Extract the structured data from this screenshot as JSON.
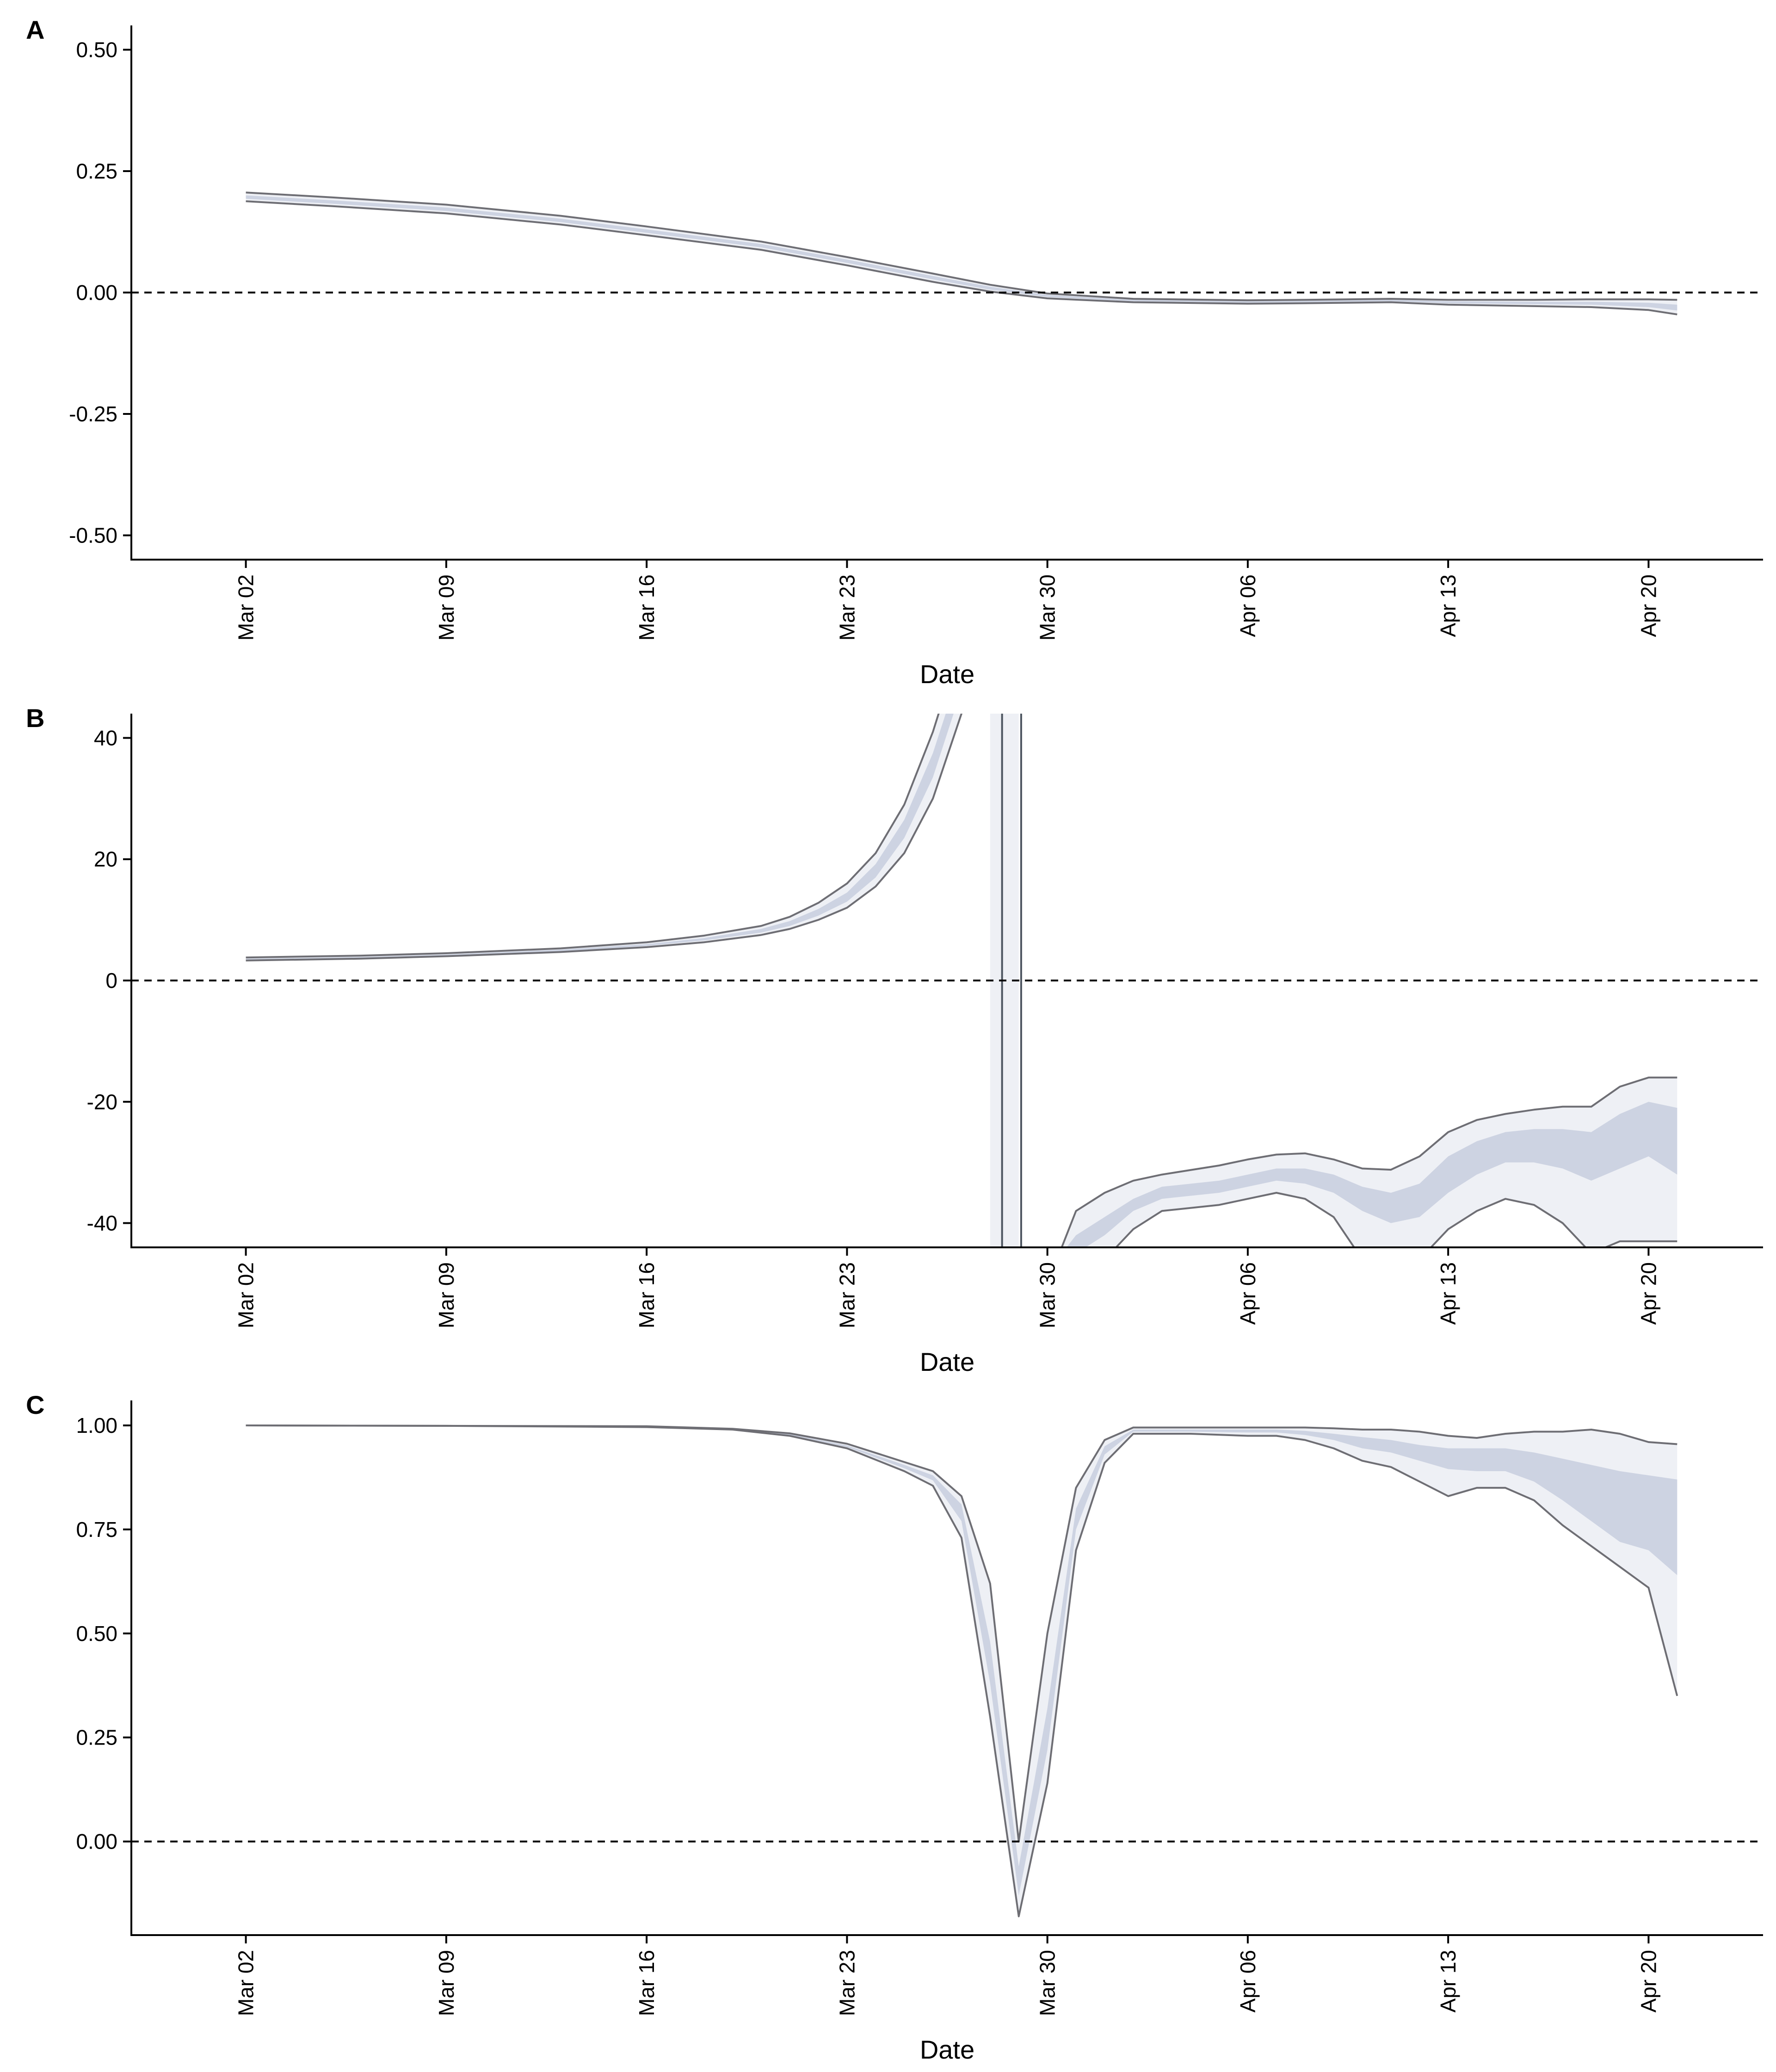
{
  "colors": {
    "band_outer": "#eef0f5",
    "band_inner": "#cdd3e2",
    "outline": "#6e6e74",
    "median": "#4d5560",
    "axis": "#000000"
  },
  "chart_data": [
    {
      "panel_label": "A",
      "type": "area",
      "xlabel": "Date",
      "ylabel": "",
      "xlim": [
        "2020-02-27",
        "2020-04-24"
      ],
      "ylim": [
        -0.55,
        0.55
      ],
      "xticks": [
        "2020-03-02",
        "2020-03-09",
        "2020-03-16",
        "2020-03-23",
        "2020-03-30",
        "2020-04-06",
        "2020-04-13",
        "2020-04-20"
      ],
      "xtick_labels": [
        "Mar 02",
        "Mar 09",
        "Mar 16",
        "Mar 23",
        "Mar 30",
        "Apr 06",
        "Apr 13",
        "Apr 20"
      ],
      "yticks": [
        -0.5,
        -0.25,
        0,
        0.25,
        0.5
      ],
      "ytick_labels": [
        "-0.50",
        "-0.25",
        "0.00",
        "0.25",
        "0.50"
      ],
      "reference_line": 0,
      "series": [
        {
          "x": [
            "2020-03-02",
            "2020-03-05",
            "2020-03-09",
            "2020-03-13",
            "2020-03-16",
            "2020-03-20",
            "2020-03-23",
            "2020-03-26",
            "2020-03-28",
            "2020-03-30",
            "2020-04-02",
            "2020-04-06",
            "2020-04-08",
            "2020-04-11",
            "2020-04-13",
            "2020-04-16",
            "2020-04-18",
            "2020-04-20",
            "2020-04-21"
          ],
          "lower": [
            0.188,
            0.178,
            0.163,
            0.14,
            0.118,
            0.088,
            0.056,
            0.022,
            0.002,
            -0.012,
            -0.02,
            -0.023,
            -0.022,
            -0.02,
            -0.025,
            -0.028,
            -0.03,
            -0.036,
            -0.045
          ],
          "lower_mid": [
            0.193,
            0.183,
            0.168,
            0.145,
            0.123,
            0.093,
            0.061,
            0.027,
            0.006,
            -0.009,
            -0.018,
            -0.021,
            -0.02,
            -0.018,
            -0.022,
            -0.024,
            -0.025,
            -0.03,
            -0.037
          ],
          "upper_mid": [
            0.2,
            0.19,
            0.175,
            0.152,
            0.13,
            0.1,
            0.068,
            0.034,
            0.012,
            -0.005,
            -0.015,
            -0.018,
            -0.017,
            -0.015,
            -0.018,
            -0.019,
            -0.019,
            -0.021,
            -0.025
          ],
          "upper": [
            0.206,
            0.196,
            0.181,
            0.158,
            0.136,
            0.105,
            0.073,
            0.039,
            0.016,
            -0.002,
            -0.013,
            -0.016,
            -0.015,
            -0.013,
            -0.015,
            -0.015,
            -0.014,
            -0.014,
            -0.015
          ]
        }
      ]
    },
    {
      "panel_label": "B",
      "type": "area",
      "xlabel": "Date",
      "ylabel": "",
      "xlim": [
        "2020-02-27",
        "2020-04-24"
      ],
      "ylim": [
        -44,
        44
      ],
      "xticks": [
        "2020-03-02",
        "2020-03-09",
        "2020-03-16",
        "2020-03-23",
        "2020-03-30",
        "2020-04-06",
        "2020-04-13",
        "2020-04-20"
      ],
      "xtick_labels": [
        "Mar 02",
        "Mar 09",
        "Mar 16",
        "Mar 23",
        "Mar 30",
        "Apr 06",
        "Apr 13",
        "Apr 20"
      ],
      "yticks": [
        -40,
        -20,
        0,
        20,
        40
      ],
      "ytick_labels": [
        "-40",
        "-20",
        "0",
        "20",
        "40"
      ],
      "reference_line": 0,
      "series": [
        {
          "x": [
            "2020-03-02",
            "2020-03-06",
            "2020-03-09",
            "2020-03-13",
            "2020-03-16",
            "2020-03-18",
            "2020-03-20",
            "2020-03-21",
            "2020-03-22",
            "2020-03-23",
            "2020-03-24",
            "2020-03-25",
            "2020-03-26",
            "2020-03-27",
            "2020-03-27T12:00"
          ],
          "lower": [
            3.3,
            3.6,
            4.0,
            4.7,
            5.5,
            6.3,
            7.5,
            8.5,
            10.0,
            12.0,
            15.5,
            21.0,
            30.0,
            44.0,
            52.0
          ],
          "lower_mid": [
            3.4,
            3.7,
            4.1,
            4.8,
            5.7,
            6.6,
            7.9,
            9.0,
            10.7,
            13.0,
            17.0,
            23.5,
            33.5,
            48.0,
            56.0
          ],
          "upper_mid": [
            3.6,
            3.9,
            4.3,
            5.1,
            6.0,
            7.0,
            8.5,
            9.8,
            11.8,
            14.5,
            19.2,
            26.5,
            37.5,
            52.0,
            60.0
          ],
          "upper": [
            3.8,
            4.1,
            4.5,
            5.3,
            6.3,
            7.4,
            9.0,
            10.5,
            12.8,
            16.0,
            21.0,
            29.0,
            41.0,
            56.0,
            64.0
          ]
        },
        {
          "x": [
            "2020-03-28",
            "2020-03-29"
          ],
          "lower": [
            -60,
            -60
          ],
          "upper": [
            60,
            60
          ],
          "median_lines": [
            "2020-03-28T10:00",
            "2020-03-29T02:00"
          ]
        },
        {
          "x": [
            "2020-03-30T12:00",
            "2020-03-31",
            "2020-04-01",
            "2020-04-02",
            "2020-04-03",
            "2020-04-05",
            "2020-04-06",
            "2020-04-07",
            "2020-04-08",
            "2020-04-09",
            "2020-04-10",
            "2020-04-11",
            "2020-04-12",
            "2020-04-13",
            "2020-04-14",
            "2020-04-15",
            "2020-04-16",
            "2020-04-17",
            "2020-04-18",
            "2020-04-19",
            "2020-04-20",
            "2020-04-21"
          ],
          "lower": [
            -46,
            -46,
            -46,
            -41,
            -38,
            -37,
            -36,
            -35,
            -36,
            -39,
            -46,
            -50,
            -46,
            -41,
            -38,
            -36,
            -37,
            -40,
            -45,
            -43,
            -43,
            -43
          ],
          "lower_mid": [
            -46,
            -45,
            -42,
            -38,
            -36,
            -35,
            -34,
            -33,
            -33.5,
            -35,
            -38,
            -40,
            -39,
            -35,
            -32,
            -30,
            -30,
            -31,
            -33,
            -31,
            -29,
            -32
          ],
          "upper_mid": [
            -45,
            -42,
            -39,
            -36,
            -34,
            -33,
            -32,
            -31,
            -31,
            -32,
            -34,
            -35,
            -33.5,
            -29,
            -26.5,
            -25,
            -24.5,
            -24.5,
            -25,
            -22,
            -20,
            -21
          ],
          "upper": [
            -44,
            -38,
            -35,
            -33,
            -32,
            -30.5,
            -29.5,
            -28.7,
            -28.5,
            -29.5,
            -31,
            -31.2,
            -29,
            -25,
            -23,
            -22,
            -21.3,
            -20.8,
            -20.8,
            -17.5,
            -16,
            -16
          ]
        }
      ]
    },
    {
      "panel_label": "C",
      "type": "area",
      "xlabel": "Date",
      "ylabel": "",
      "xlim": [
        "2020-02-27",
        "2020-04-24"
      ],
      "ylim": [
        -0.225,
        1.06
      ],
      "xticks": [
        "2020-03-02",
        "2020-03-09",
        "2020-03-16",
        "2020-03-23",
        "2020-03-30",
        "2020-04-06",
        "2020-04-13",
        "2020-04-20"
      ],
      "xtick_labels": [
        "Mar 02",
        "Mar 09",
        "Mar 16",
        "Mar 23",
        "Mar 30",
        "Apr 06",
        "Apr 13",
        "Apr 20"
      ],
      "yticks": [
        0,
        0.25,
        0.5,
        0.75,
        1
      ],
      "ytick_labels": [
        "0.00",
        "0.25",
        "0.50",
        "0.75",
        "1.00"
      ],
      "reference_line": 0,
      "series": [
        {
          "x": [
            "2020-03-02",
            "2020-03-09",
            "2020-03-16",
            "2020-03-19",
            "2020-03-21",
            "2020-03-23",
            "2020-03-25",
            "2020-03-26",
            "2020-03-27",
            "2020-03-28",
            "2020-03-29",
            "2020-03-30",
            "2020-03-31",
            "2020-04-01",
            "2020-04-02",
            "2020-04-04",
            "2020-04-06",
            "2020-04-07",
            "2020-04-08",
            "2020-04-09",
            "2020-04-10",
            "2020-04-11",
            "2020-04-12",
            "2020-04-13",
            "2020-04-14",
            "2020-04-15",
            "2020-04-16",
            "2020-04-17",
            "2020-04-18",
            "2020-04-19",
            "2020-04-20",
            "2020-04-21"
          ],
          "lower": [
            1.0,
            0.999,
            0.996,
            0.99,
            0.975,
            0.945,
            0.89,
            0.855,
            0.73,
            0.3,
            -0.18,
            0.14,
            0.7,
            0.91,
            0.98,
            0.98,
            0.975,
            0.975,
            0.965,
            0.945,
            0.915,
            0.9,
            0.865,
            0.83,
            0.85,
            0.85,
            0.82,
            0.76,
            0.71,
            0.66,
            0.61,
            0.35
          ],
          "lower_mid": [
            1.0,
            0.999,
            0.996,
            0.99,
            0.977,
            0.948,
            0.897,
            0.868,
            0.77,
            0.38,
            -0.13,
            0.22,
            0.75,
            0.93,
            0.985,
            0.985,
            0.983,
            0.983,
            0.977,
            0.965,
            0.945,
            0.935,
            0.915,
            0.895,
            0.89,
            0.89,
            0.865,
            0.82,
            0.77,
            0.72,
            0.7,
            0.64
          ],
          "upper_mid": [
            1.0,
            0.999,
            0.997,
            0.991,
            0.979,
            0.952,
            0.905,
            0.88,
            0.81,
            0.48,
            -0.06,
            0.32,
            0.8,
            0.95,
            0.99,
            0.99,
            0.99,
            0.99,
            0.987,
            0.98,
            0.972,
            0.965,
            0.953,
            0.945,
            0.945,
            0.945,
            0.935,
            0.92,
            0.905,
            0.89,
            0.88,
            0.87
          ],
          "upper": [
            1.0,
            0.999,
            0.998,
            0.992,
            0.981,
            0.956,
            0.912,
            0.89,
            0.83,
            0.62,
            0.0,
            0.5,
            0.85,
            0.965,
            0.995,
            0.995,
            0.995,
            0.995,
            0.995,
            0.993,
            0.99,
            0.99,
            0.985,
            0.975,
            0.97,
            0.98,
            0.985,
            0.985,
            0.99,
            0.98,
            0.96,
            0.955
          ]
        }
      ]
    }
  ]
}
